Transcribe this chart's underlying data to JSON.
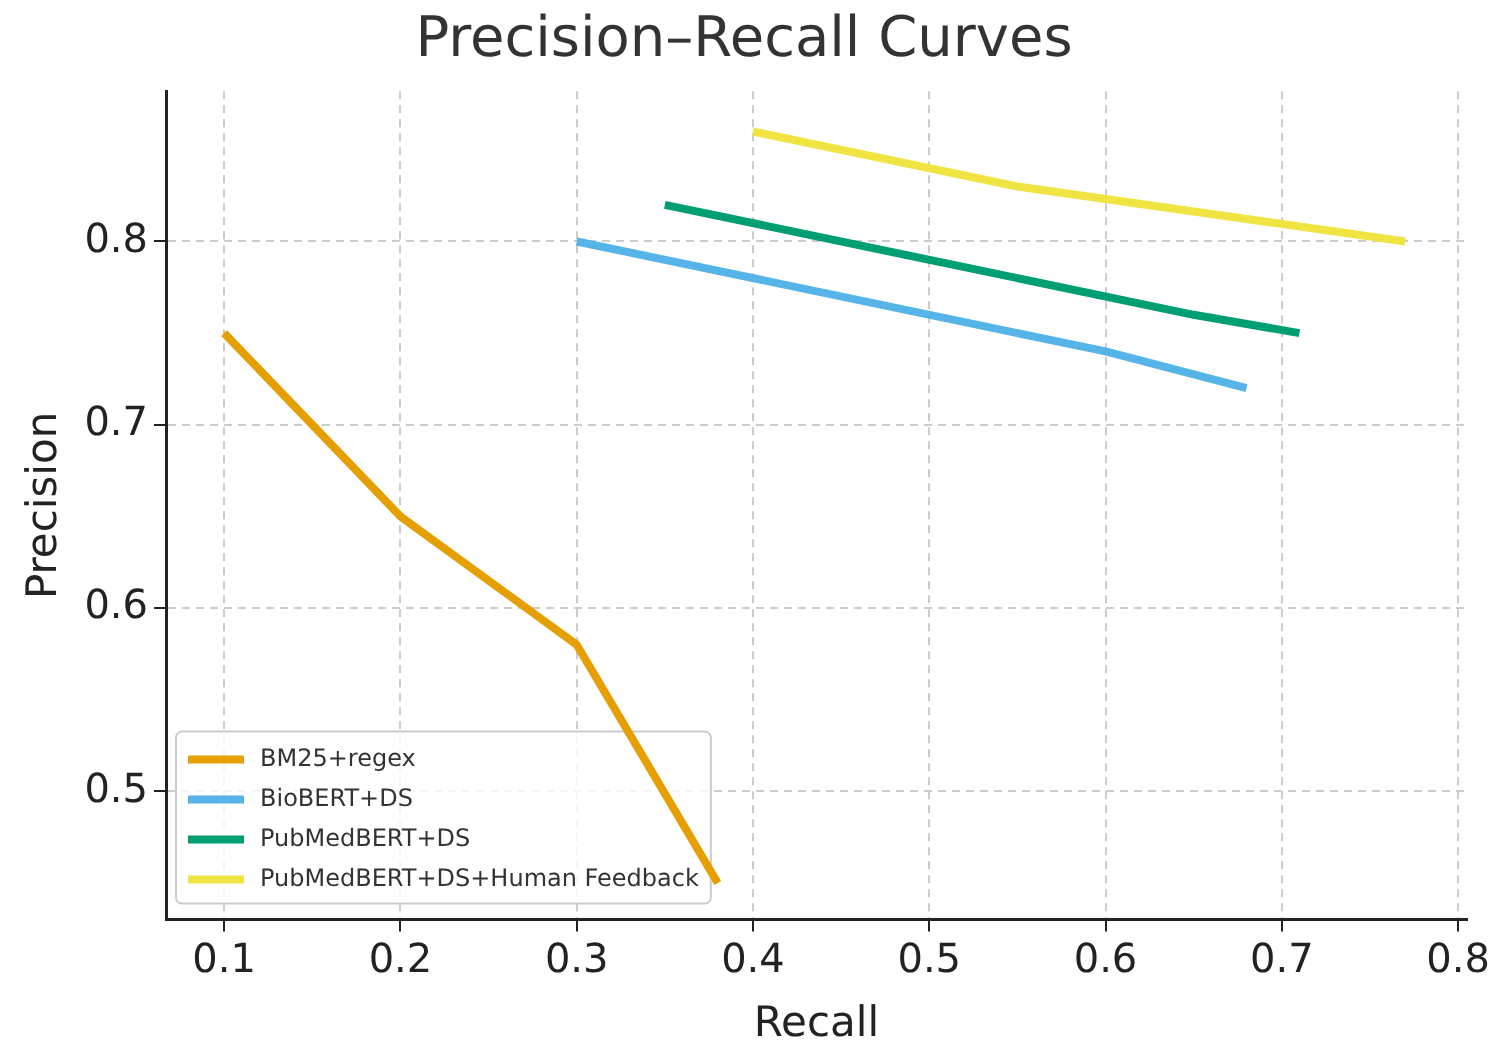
{
  "chart_data": {
    "type": "line",
    "title": "Precision–Recall Curves",
    "xlabel": "Recall",
    "ylabel": "Precision",
    "xlim": [
      0.067,
      0.805
    ],
    "xticks": [
      0.1,
      0.2,
      0.3,
      0.4,
      0.5,
      0.6,
      0.7,
      0.8
    ],
    "ylim": [
      0.43,
      0.882
    ],
    "yticks": [
      0.5,
      0.6,
      0.7,
      0.8
    ],
    "grid": true,
    "legend": "bottom left",
    "marker": "none",
    "line_style": "solid",
    "series": [
      {
        "name": "BM25+regex",
        "color": "#e69f00",
        "x": [
          0.1,
          0.2,
          0.3,
          0.38
        ],
        "values": [
          0.75,
          0.65,
          0.58,
          0.45
        ]
      },
      {
        "name": "BioBERT+DS",
        "color": "#56b4e9",
        "x": [
          0.3,
          0.6,
          0.68
        ],
        "values": [
          0.8,
          0.74,
          0.72
        ]
      },
      {
        "name": "PubMedBERT+DS",
        "color": "#009e73",
        "x": [
          0.35,
          0.65,
          0.71
        ],
        "values": [
          0.82,
          0.76,
          0.75
        ]
      },
      {
        "name": "PubMedBERT+DS+Human Feedback",
        "color": "#f0e442",
        "x": [
          0.4,
          0.55,
          0.77
        ],
        "values": [
          0.86,
          0.83,
          0.8
        ]
      }
    ]
  }
}
